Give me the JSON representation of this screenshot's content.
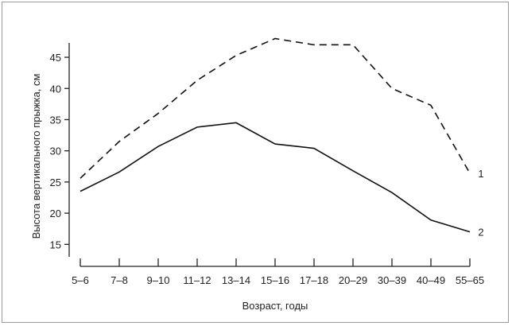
{
  "chart_data": {
    "type": "line",
    "xlabel": "Возраст, годы",
    "ylabel": "Высота вертикального прыжка, см",
    "categories": [
      "5–6",
      "7–8",
      "9–10",
      "11–12",
      "13–14",
      "15–16",
      "17–18",
      "20–29",
      "30–39",
      "40–49",
      "55–65"
    ],
    "y_ticks": [
      15,
      20,
      25,
      30,
      35,
      40,
      45
    ],
    "ylim": [
      13,
      47.3
    ],
    "grid": false,
    "series": [
      {
        "name": "1",
        "style": "dashed",
        "color": "#111111",
        "values": [
          25.6,
          31.5,
          36.0,
          41.3,
          45.3,
          48.0,
          47.0,
          47.0,
          40.0,
          37.3,
          26.4
        ]
      },
      {
        "name": "2",
        "style": "solid",
        "color": "#111111",
        "values": [
          23.5,
          26.6,
          30.7,
          33.8,
          34.5,
          31.1,
          30.4,
          26.8,
          23.3,
          18.9,
          17.0
        ]
      }
    ]
  }
}
